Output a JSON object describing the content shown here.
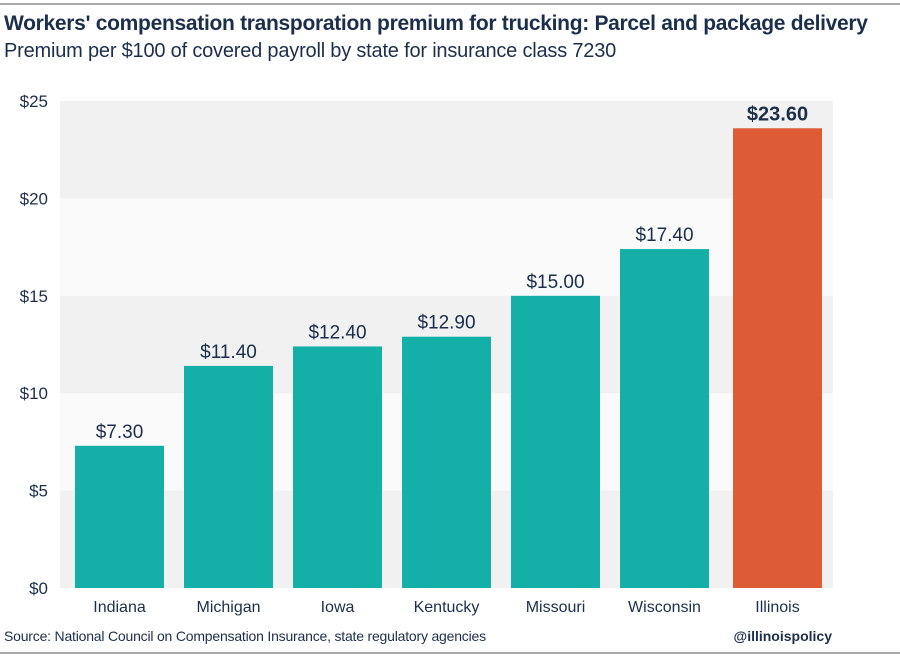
{
  "chart_data": {
    "type": "bar",
    "title": "Workers' compensation transporation premium for trucking: Parcel and package delivery",
    "subtitle": "Premium per $100 of covered payroll by state for insurance class 7230",
    "categories": [
      "Indiana",
      "Michigan",
      "Iowa",
      "Kentucky",
      "Missouri",
      "Wisconsin",
      "Illinois"
    ],
    "values": [
      7.3,
      11.4,
      12.4,
      12.9,
      15.0,
      17.4,
      23.6
    ],
    "data_labels": [
      "$7.30",
      "$11.40",
      "$12.40",
      "$12.90",
      "$15.00",
      "$17.40",
      "$23.60"
    ],
    "highlight_index": 6,
    "ylim": [
      0,
      25
    ],
    "yticks": [
      0,
      5,
      10,
      15,
      20,
      25
    ],
    "ytick_labels": [
      "$0",
      "$5",
      "$10",
      "$15",
      "$20",
      "$25"
    ],
    "xlabel": "",
    "ylabel": "",
    "grid": "alternating horizontal bands",
    "colors": {
      "bar": "#14b0a8",
      "highlight": "#de5c35",
      "band_dark": "#f1f1f1",
      "band_light": "#fafafa",
      "text": "#1b2f4b"
    }
  },
  "footer": {
    "source": "Source: National Council on Compensation Insurance, state regulatory agencies",
    "handle": "@illinoispolicy"
  }
}
